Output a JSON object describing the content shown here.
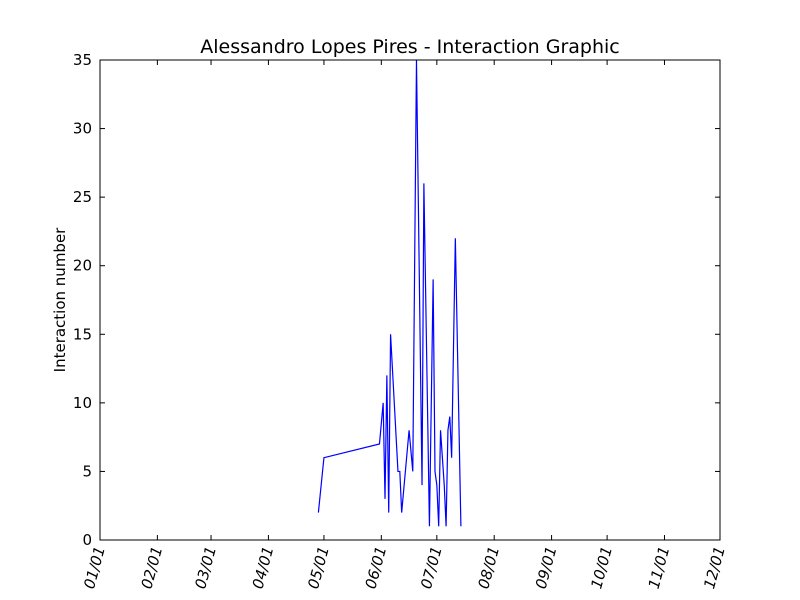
{
  "chart_data": {
    "type": "line",
    "title": "Alessandro Lopes Pires - Interaction Graphic",
    "xlabel": "",
    "ylabel": "Interaction number",
    "x_axis": {
      "type": "date",
      "range": [
        "2016-01-01",
        "2016-12-01"
      ],
      "tick_labels": [
        "01/01",
        "02/01",
        "03/01",
        "04/01",
        "05/01",
        "06/01",
        "07/01",
        "08/01",
        "09/01",
        "10/01",
        "11/01",
        "12/01"
      ],
      "tick_dates": [
        "2016-01-01",
        "2016-02-01",
        "2016-03-01",
        "2016-04-01",
        "2016-05-01",
        "2016-06-01",
        "2016-07-01",
        "2016-08-01",
        "2016-09-01",
        "2016-10-01",
        "2016-11-01",
        "2016-12-01"
      ]
    },
    "y_axis": {
      "range": [
        0,
        35
      ],
      "ticks": [
        0,
        5,
        10,
        15,
        20,
        25,
        30,
        35
      ]
    },
    "grid": false,
    "series": [
      {
        "color": "#0000ff",
        "points": [
          {
            "x": "2016-04-28",
            "y": 2
          },
          {
            "x": "2016-05-01",
            "y": 6
          },
          {
            "x": "2016-05-31",
            "y": 7
          },
          {
            "x": "2016-06-02",
            "y": 10
          },
          {
            "x": "2016-06-03",
            "y": 3
          },
          {
            "x": "2016-06-04",
            "y": 12
          },
          {
            "x": "2016-06-05",
            "y": 2
          },
          {
            "x": "2016-06-06",
            "y": 15
          },
          {
            "x": "2016-06-10",
            "y": 5
          },
          {
            "x": "2016-06-11",
            "y": 5
          },
          {
            "x": "2016-06-12",
            "y": 2
          },
          {
            "x": "2016-06-16",
            "y": 8
          },
          {
            "x": "2016-06-18",
            "y": 5
          },
          {
            "x": "2016-06-20",
            "y": 35
          },
          {
            "x": "2016-06-23",
            "y": 4
          },
          {
            "x": "2016-06-24",
            "y": 26
          },
          {
            "x": "2016-06-27",
            "y": 1
          },
          {
            "x": "2016-06-29",
            "y": 19
          },
          {
            "x": "2016-06-30",
            "y": 5
          },
          {
            "x": "2016-07-01",
            "y": 4
          },
          {
            "x": "2016-07-02",
            "y": 1
          },
          {
            "x": "2016-07-03",
            "y": 8
          },
          {
            "x": "2016-07-05",
            "y": 4
          },
          {
            "x": "2016-07-06",
            "y": 1
          },
          {
            "x": "2016-07-07",
            "y": 8
          },
          {
            "x": "2016-07-08",
            "y": 9
          },
          {
            "x": "2016-07-09",
            "y": 6
          },
          {
            "x": "2016-07-11",
            "y": 22
          },
          {
            "x": "2016-07-14",
            "y": 1
          }
        ]
      }
    ]
  }
}
